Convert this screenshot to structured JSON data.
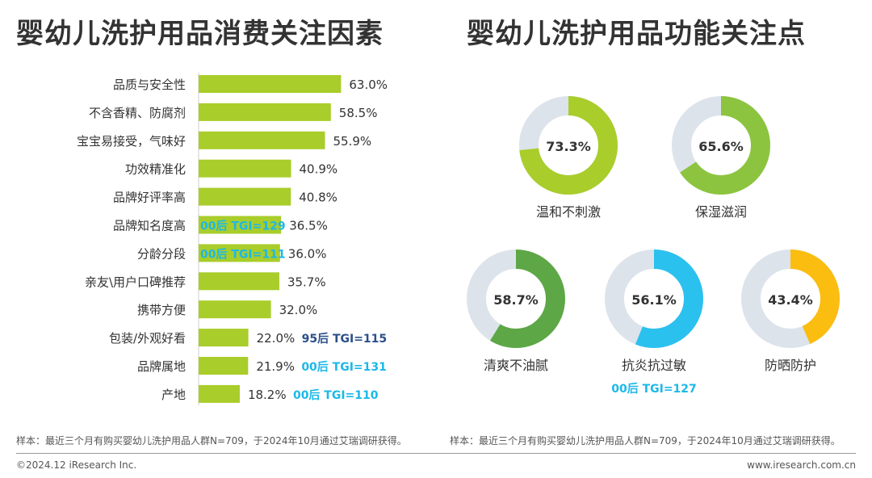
{
  "left_title": "婴幼儿洗护用品消费关注因素",
  "right_title": "婴幼儿洗护用品功能关注点",
  "note_left": "样本：最近三个月有购买婴幼儿洗护用品人群N=709，于2024年10月通过艾瑞调研获得。",
  "note_right": "样本：最近三个月有购买婴幼儿洗护用品人群N=709，于2024年10月通过艾瑞调研获得。",
  "footer_left": "©2024.12 iResearch Inc.",
  "footer_right": "www.iresearch.com.cn",
  "colors": {
    "bar": "#a9cd2a",
    "tgi_cyan": "#1cb8e8",
    "tgi_navy": "#2b4f8a",
    "ring_bg": "#dde3eb"
  },
  "chart_data": [
    {
      "type": "bar",
      "orientation": "horizontal",
      "categories": [
        "品质与安全性",
        "不含香精、防腐剂",
        "宝宝易接受，气味好",
        "功效精准化",
        "品牌好评率高",
        "品牌知名度高",
        "分龄分段",
        "亲友\\用户口碑推荐",
        "携带方便",
        "包装/外观好看",
        "品牌属地",
        "产地"
      ],
      "values": [
        63.0,
        58.5,
        55.9,
        40.9,
        40.8,
        36.5,
        36.0,
        35.7,
        32.0,
        22.0,
        21.9,
        18.2
      ],
      "value_labels": [
        "63.0%",
        "58.5%",
        "55.9%",
        "40.9%",
        "40.8%",
        "36.5%",
        "36.0%",
        "35.7%",
        "32.0%",
        "22.0%",
        "21.9%",
        "18.2%"
      ],
      "annotations": [
        {
          "category": "品牌知名度高",
          "text": "00后 TGI=129",
          "placement": "inside-bar",
          "color": "#1cb8e8"
        },
        {
          "category": "分龄分段",
          "text": "00后 TGI=111",
          "placement": "inside-bar",
          "color": "#1cb8e8"
        },
        {
          "category": "包装/外观好看",
          "text": "95后 TGI=115",
          "placement": "after-label",
          "color": "#2b4f8a"
        },
        {
          "category": "品牌属地",
          "text": "00后 TGI=131",
          "placement": "after-label",
          "color": "#1cb8e8"
        },
        {
          "category": "产地",
          "text": "00后 TGI=110",
          "placement": "after-label",
          "color": "#1cb8e8"
        }
      ],
      "xlim": [
        0,
        100
      ]
    },
    {
      "type": "pie",
      "style": "donut",
      "items": [
        {
          "label": "温和不刺激",
          "value": 73.3,
          "text": "73.3%",
          "color": "#a9cd2a"
        },
        {
          "label": "保湿滋润",
          "value": 65.6,
          "text": "65.6%",
          "color": "#8cc43f"
        },
        {
          "label": "清爽不油腻",
          "value": 58.7,
          "text": "58.7%",
          "color": "#5da746"
        },
        {
          "label": "抗炎抗过敏",
          "value": 56.1,
          "text": "56.1%",
          "color": "#2bc1ef",
          "annotation": "00后 TGI=127"
        },
        {
          "label": "防晒防护",
          "value": 43.4,
          "text": "43.4%",
          "color": "#fbbd0f"
        }
      ]
    }
  ]
}
